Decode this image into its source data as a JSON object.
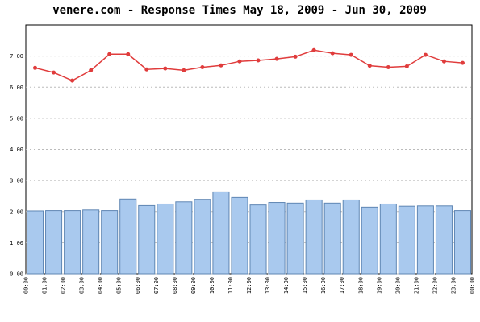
{
  "chart_data": {
    "type": "bar_line",
    "title": "venere.com - Response Times May 18, 2009 - Jun 30, 2009",
    "x_labels": [
      "00:00",
      "01:00",
      "02:00",
      "03:00",
      "04:00",
      "05:00",
      "06:00",
      "07:00",
      "08:00",
      "09:00",
      "10:00",
      "11:00",
      "12:00",
      "13:00",
      "14:00",
      "15:00",
      "16:00",
      "17:00",
      "18:00",
      "19:00",
      "20:00",
      "21:00",
      "22:00",
      "23:00",
      "00:00"
    ],
    "series": [
      {
        "type": "bar",
        "color": "#a9c9ee",
        "values": [
          2.02,
          2.03,
          2.03,
          2.05,
          2.03,
          2.4,
          2.19,
          2.24,
          2.31,
          2.39,
          2.63,
          2.45,
          2.21,
          2.29,
          2.27,
          2.37,
          2.27,
          2.37,
          2.14,
          2.24,
          2.17,
          2.18,
          2.18,
          2.03
        ]
      },
      {
        "type": "line",
        "color": "#e03c3c",
        "values": [
          6.62,
          6.47,
          6.21,
          6.54,
          7.06,
          7.06,
          6.57,
          6.6,
          6.54,
          6.64,
          6.7,
          6.83,
          6.86,
          6.91,
          6.98,
          7.19,
          7.09,
          7.04,
          6.69,
          6.64,
          6.67,
          7.04,
          6.83,
          6.78
        ]
      }
    ],
    "ylim": [
      0,
      8
    ],
    "yticks": [
      {
        "value": 0,
        "label": "0.00"
      },
      {
        "value": 1,
        "label": "1.00"
      },
      {
        "value": 2,
        "label": "2.00"
      },
      {
        "value": 3,
        "label": "3.00"
      },
      {
        "value": 4,
        "label": "4.00"
      },
      {
        "value": 5,
        "label": "5.00"
      },
      {
        "value": 6,
        "label": "6.00"
      },
      {
        "value": 7,
        "label": "7.00"
      }
    ],
    "grid": true
  }
}
